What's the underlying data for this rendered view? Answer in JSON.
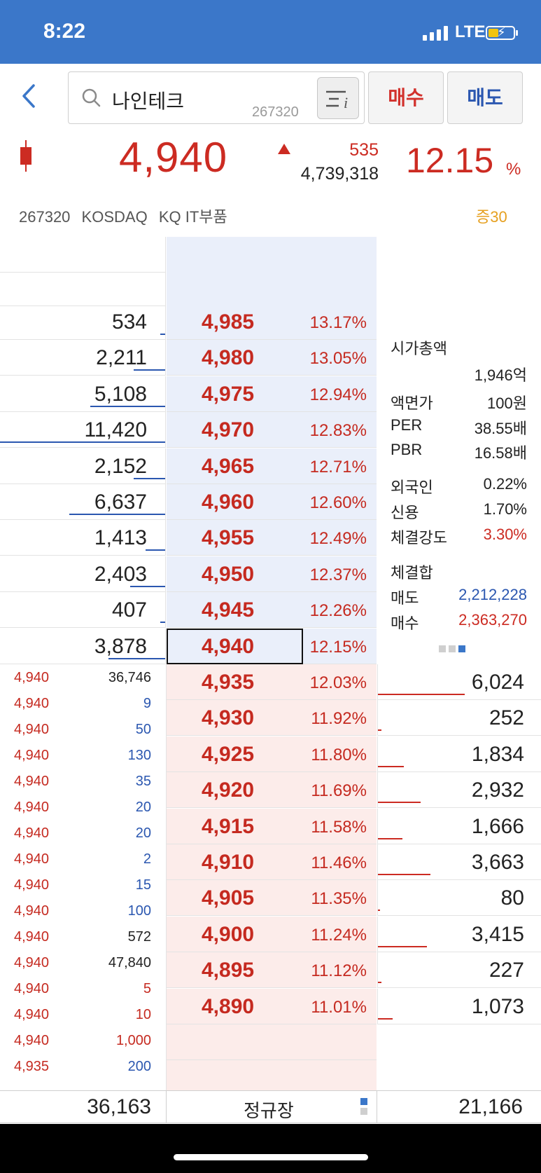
{
  "status_bar": {
    "time": "8:22",
    "network": "LTE"
  },
  "search": {
    "stock_name": "나인테크",
    "stock_code": "267320"
  },
  "buttons": {
    "buy": "매수",
    "sell": "매도"
  },
  "quote": {
    "price": "4,940",
    "change": "535",
    "volume": "4,739,318",
    "change_pct": "12.15",
    "pct_sign": "%"
  },
  "info": {
    "code": "267320",
    "market": "KOSDAQ",
    "sector": "KQ IT부품",
    "margin": "증30"
  },
  "asks": [
    {
      "qty": "534",
      "price": "4,985",
      "rate": "13.17%",
      "bar": 0.03
    },
    {
      "qty": "2,211",
      "price": "4,980",
      "rate": "13.05%",
      "bar": 0.19
    },
    {
      "qty": "5,108",
      "price": "4,975",
      "rate": "12.94%",
      "bar": 0.45
    },
    {
      "qty": "11,420",
      "price": "4,970",
      "rate": "12.83%",
      "bar": 1.0
    },
    {
      "qty": "2,152",
      "price": "4,965",
      "rate": "12.71%",
      "bar": 0.19
    },
    {
      "qty": "6,637",
      "price": "4,960",
      "rate": "12.60%",
      "bar": 0.58
    },
    {
      "qty": "1,413",
      "price": "4,955",
      "rate": "12.49%",
      "bar": 0.12
    },
    {
      "qty": "2,403",
      "price": "4,950",
      "rate": "12.37%",
      "bar": 0.21
    },
    {
      "qty": "407",
      "price": "4,945",
      "rate": "12.26%",
      "bar": 0.03
    },
    {
      "qty": "3,878",
      "price": "4,940",
      "rate": "12.15%",
      "bar": 0.34
    }
  ],
  "bids": [
    {
      "qty": "6,024",
      "price": "4,935",
      "rate": "12.03%",
      "bar": 0.53
    },
    {
      "qty": "252",
      "price": "4,930",
      "rate": "11.92%",
      "bar": 0.02
    },
    {
      "qty": "1,834",
      "price": "4,925",
      "rate": "11.80%",
      "bar": 0.16
    },
    {
      "qty": "2,932",
      "price": "4,920",
      "rate": "11.69%",
      "bar": 0.26
    },
    {
      "qty": "1,666",
      "price": "4,915",
      "rate": "11.58%",
      "bar": 0.15
    },
    {
      "qty": "3,663",
      "price": "4,910",
      "rate": "11.46%",
      "bar": 0.32
    },
    {
      "qty": "80",
      "price": "4,905",
      "rate": "11.35%",
      "bar": 0.01
    },
    {
      "qty": "3,415",
      "price": "4,900",
      "rate": "11.24%",
      "bar": 0.3
    },
    {
      "qty": "227",
      "price": "4,895",
      "rate": "11.12%",
      "bar": 0.02
    },
    {
      "qty": "1,073",
      "price": "4,890",
      "rate": "11.01%",
      "bar": 0.09
    }
  ],
  "stats": {
    "market_cap_label": "시가총액",
    "market_cap": "1,946억",
    "par_label": "액면가",
    "par": "100원",
    "per_label": "PER",
    "per": "38.55배",
    "pbr_label": "PBR",
    "pbr": "16.58배",
    "foreign_label": "외국인",
    "foreign": "0.22%",
    "credit_label": "신용",
    "credit": "1.70%",
    "strength_label": "체결강도",
    "strength": "3.30%",
    "total_label": "체결합",
    "sell_label": "매도",
    "sell_total": "2,212,228",
    "buy_label": "매수",
    "buy_total": "2,363,270"
  },
  "ticks": [
    {
      "price": "4,940",
      "qty": "36,746",
      "color": "black"
    },
    {
      "price": "4,940",
      "qty": "9",
      "color": "blue"
    },
    {
      "price": "4,940",
      "qty": "50",
      "color": "blue"
    },
    {
      "price": "4,940",
      "qty": "130",
      "color": "blue"
    },
    {
      "price": "4,940",
      "qty": "35",
      "color": "blue"
    },
    {
      "price": "4,940",
      "qty": "20",
      "color": "blue"
    },
    {
      "price": "4,940",
      "qty": "20",
      "color": "blue"
    },
    {
      "price": "4,940",
      "qty": "2",
      "color": "blue"
    },
    {
      "price": "4,940",
      "qty": "15",
      "color": "blue"
    },
    {
      "price": "4,940",
      "qty": "100",
      "color": "blue"
    },
    {
      "price": "4,940",
      "qty": "572",
      "color": "black"
    },
    {
      "price": "4,940",
      "qty": "47,840",
      "color": "black"
    },
    {
      "price": "4,940",
      "qty": "5",
      "color": "red"
    },
    {
      "price": "4,940",
      "qty": "10",
      "color": "red"
    },
    {
      "price": "4,940",
      "qty": "1,000",
      "color": "red"
    },
    {
      "price": "4,935",
      "qty": "200",
      "color": "blue"
    }
  ],
  "footer": {
    "total_ask": "36,163",
    "session": "정규장",
    "total_bid": "21,166"
  },
  "colors": {
    "header_blue": "#3b77c9",
    "up_red": "#cc2b22",
    "ask_bg": "#eaeffa",
    "bid_bg": "#fcecea",
    "down_blue": "#2b57b0"
  }
}
